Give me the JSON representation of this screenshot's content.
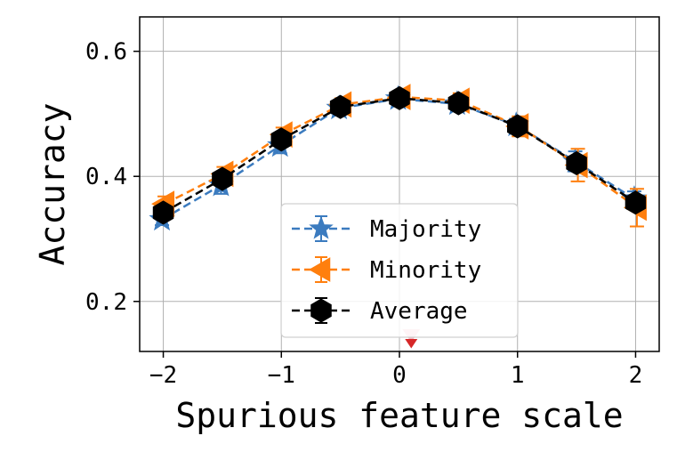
{
  "chart_data": {
    "type": "line",
    "title": "",
    "xlabel": "Spurious feature scale",
    "ylabel": "Accuracy",
    "xlim": [
      -2.2,
      2.2
    ],
    "ylim": [
      0.12,
      0.655
    ],
    "xticks": [
      -2,
      -1,
      0,
      1,
      2
    ],
    "xtick_labels": [
      "−2",
      "−1",
      "0",
      "1",
      "2"
    ],
    "yticks": [
      0.2,
      0.4,
      0.6
    ],
    "ytick_labels": [
      "0.2",
      "0.4",
      "0.6"
    ],
    "grid": true,
    "legend_position": "lower-center",
    "x": [
      -2,
      -1.5,
      -1,
      -0.5,
      0,
      0.5,
      1,
      1.5,
      2
    ],
    "series": [
      {
        "name": "Majority",
        "marker": "star",
        "color": "#3b7bbf",
        "values": [
          0.331,
          0.386,
          0.449,
          0.509,
          0.524,
          0.516,
          0.482,
          0.424,
          0.364
        ],
        "error": [
          0.009,
          0.014,
          0.012,
          0.008,
          0.007,
          0.008,
          0.01,
          0.016,
          0.012
        ]
      },
      {
        "name": "Minority",
        "marker": "triangle-left",
        "color": "#ff7f0e",
        "values": [
          0.356,
          0.404,
          0.467,
          0.515,
          0.527,
          0.521,
          0.48,
          0.418,
          0.35
        ],
        "error": [
          0.012,
          0.011,
          0.011,
          0.01,
          0.007,
          0.012,
          0.016,
          0.026,
          0.03
        ]
      },
      {
        "name": "Average",
        "marker": "hexagon",
        "color": "#000000",
        "values": [
          0.342,
          0.396,
          0.459,
          0.511,
          0.525,
          0.517,
          0.48,
          0.421,
          0.358
        ],
        "error": [
          0.005,
          0.006,
          0.006,
          0.005,
          0.004,
          0.005,
          0.006,
          0.008,
          0.01
        ]
      }
    ],
    "annotations": [
      {
        "type": "triangle-marker",
        "x": 0.1,
        "y": 0.133,
        "color": "#d62728"
      }
    ]
  }
}
